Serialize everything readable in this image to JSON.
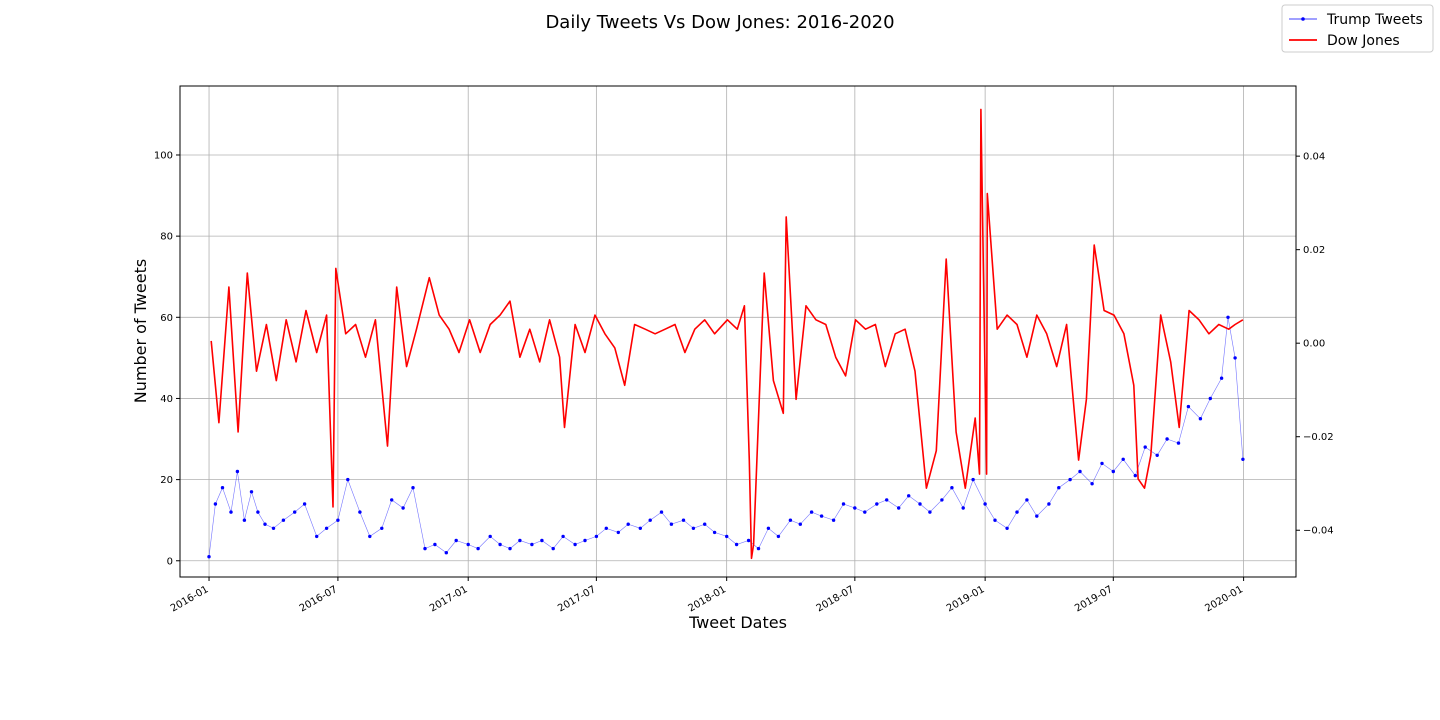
{
  "chart_data": {
    "type": "line",
    "title": "Daily Tweets Vs Dow Jones: 2016-2020",
    "xlabel": "Tweet Dates",
    "ylabel": "Number of Tweets",
    "y2label": "",
    "xlim": [
      "2015-11-21",
      "2020-03-15"
    ],
    "ylim": [
      -4,
      117
    ],
    "y2lim": [
      -0.05,
      0.055
    ],
    "grid": true,
    "legend_position": "top-right",
    "x_ticks": [
      "2016-01",
      "2016-07",
      "2017-01",
      "2017-07",
      "2018-01",
      "2018-07",
      "2019-01",
      "2019-07",
      "2020-01"
    ],
    "y_ticks": [
      0,
      20,
      40,
      60,
      80,
      100
    ],
    "y2_ticks": [
      0.04,
      0.02,
      0.0,
      -0.02,
      -0.04
    ],
    "y2_tick_labels": [
      "0.04",
      "0.02",
      "0.00",
      "−0.02",
      "−0.04"
    ],
    "colors": {
      "tweets": "#0000ff",
      "dow": "#ff0000",
      "grid": "#b0b0b0"
    },
    "series": [
      {
        "name": "Trump Tweets",
        "axis": "left",
        "style": "line-with-markers",
        "x": [
          "2016-01-01",
          "2016-01-10",
          "2016-01-20",
          "2016-02-01",
          "2016-02-10",
          "2016-02-20",
          "2016-03-01",
          "2016-03-10",
          "2016-03-20",
          "2016-04-01",
          "2016-04-15",
          "2016-05-01",
          "2016-05-15",
          "2016-06-01",
          "2016-06-15",
          "2016-07-01",
          "2016-07-15",
          "2016-08-01",
          "2016-08-15",
          "2016-09-01",
          "2016-09-15",
          "2016-10-01",
          "2016-10-15",
          "2016-11-01",
          "2016-11-15",
          "2016-12-01",
          "2016-12-15",
          "2017-01-01",
          "2017-01-15",
          "2017-02-01",
          "2017-02-15",
          "2017-03-01",
          "2017-03-15",
          "2017-04-01",
          "2017-04-15",
          "2017-05-01",
          "2017-05-15",
          "2017-06-01",
          "2017-06-15",
          "2017-07-01",
          "2017-07-15",
          "2017-08-01",
          "2017-08-15",
          "2017-09-01",
          "2017-09-15",
          "2017-10-01",
          "2017-10-15",
          "2017-11-01",
          "2017-11-15",
          "2017-12-01",
          "2017-12-15",
          "2018-01-01",
          "2018-01-15",
          "2018-02-01",
          "2018-02-15",
          "2018-03-01",
          "2018-03-15",
          "2018-04-01",
          "2018-04-15",
          "2018-05-01",
          "2018-05-15",
          "2018-06-01",
          "2018-06-15",
          "2018-07-01",
          "2018-07-15",
          "2018-08-01",
          "2018-08-15",
          "2018-09-01",
          "2018-09-15",
          "2018-10-01",
          "2018-10-15",
          "2018-11-01",
          "2018-11-15",
          "2018-12-01",
          "2018-12-15",
          "2019-01-01",
          "2019-01-15",
          "2019-02-01",
          "2019-02-15",
          "2019-03-01",
          "2019-03-15",
          "2019-04-01",
          "2019-04-15",
          "2019-05-01",
          "2019-05-15",
          "2019-06-01",
          "2019-06-15",
          "2019-07-01",
          "2019-07-15",
          "2019-08-01",
          "2019-08-15",
          "2019-09-01",
          "2019-09-15",
          "2019-10-01",
          "2019-10-15",
          "2019-11-01",
          "2019-11-15",
          "2019-12-01",
          "2019-12-10",
          "2019-12-20",
          "2019-12-31"
        ],
        "values": [
          1,
          14,
          18,
          12,
          22,
          10,
          17,
          12,
          9,
          8,
          10,
          12,
          14,
          6,
          8,
          10,
          20,
          12,
          6,
          8,
          15,
          13,
          18,
          3,
          4,
          2,
          5,
          4,
          3,
          6,
          4,
          3,
          5,
          4,
          5,
          3,
          6,
          4,
          5,
          6,
          8,
          7,
          9,
          8,
          10,
          12,
          9,
          10,
          8,
          9,
          7,
          6,
          4,
          5,
          3,
          8,
          6,
          10,
          9,
          12,
          11,
          10,
          14,
          13,
          12,
          14,
          15,
          13,
          16,
          14,
          12,
          15,
          18,
          13,
          20,
          14,
          10,
          8,
          12,
          15,
          11,
          14,
          18,
          20,
          22,
          19,
          24,
          22,
          25,
          21,
          28,
          26,
          30,
          29,
          38,
          35,
          40,
          45,
          60,
          50,
          25
        ]
      },
      {
        "name": "Dow Jones",
        "axis": "right",
        "style": "line",
        "x": [
          "2016-01-04",
          "2016-01-15",
          "2016-01-29",
          "2016-02-11",
          "2016-02-24",
          "2016-03-08",
          "2016-03-22",
          "2016-04-05",
          "2016-04-19",
          "2016-05-03",
          "2016-05-17",
          "2016-06-01",
          "2016-06-15",
          "2016-06-24",
          "2016-06-28",
          "2016-07-12",
          "2016-07-26",
          "2016-08-09",
          "2016-08-23",
          "2016-09-09",
          "2016-09-22",
          "2016-10-06",
          "2016-10-20",
          "2016-11-07",
          "2016-11-21",
          "2016-12-05",
          "2016-12-19",
          "2017-01-03",
          "2017-01-18",
          "2017-02-01",
          "2017-02-15",
          "2017-03-01",
          "2017-03-15",
          "2017-03-29",
          "2017-04-12",
          "2017-04-26",
          "2017-05-10",
          "2017-05-17",
          "2017-06-01",
          "2017-06-15",
          "2017-06-29",
          "2017-07-13",
          "2017-07-27",
          "2017-08-10",
          "2017-08-24",
          "2017-09-08",
          "2017-09-22",
          "2017-10-06",
          "2017-10-20",
          "2017-11-03",
          "2017-11-17",
          "2017-12-01",
          "2017-12-15",
          "2018-01-02",
          "2018-01-16",
          "2018-01-26",
          "2018-02-02",
          "2018-02-05",
          "2018-02-08",
          "2018-02-23",
          "2018-03-08",
          "2018-03-22",
          "2018-03-26",
          "2018-04-09",
          "2018-04-23",
          "2018-05-07",
          "2018-05-21",
          "2018-06-04",
          "2018-06-18",
          "2018-07-02",
          "2018-07-16",
          "2018-07-30",
          "2018-08-13",
          "2018-08-27",
          "2018-09-10",
          "2018-09-24",
          "2018-10-10",
          "2018-10-24",
          "2018-11-07",
          "2018-11-21",
          "2018-12-04",
          "2018-12-18",
          "2018-12-24",
          "2018-12-26",
          "2019-01-03",
          "2019-01-04",
          "2019-01-18",
          "2019-02-01",
          "2019-02-15",
          "2019-03-01",
          "2019-03-15",
          "2019-03-29",
          "2019-04-12",
          "2019-04-26",
          "2019-05-13",
          "2019-05-24",
          "2019-06-04",
          "2019-06-18",
          "2019-07-02",
          "2019-07-16",
          "2019-07-30",
          "2019-08-05",
          "2019-08-14",
          "2019-08-23",
          "2019-09-06",
          "2019-09-20",
          "2019-10-02",
          "2019-10-16",
          "2019-10-30",
          "2019-11-13",
          "2019-11-27",
          "2019-12-11",
          "2019-12-20",
          "2019-12-31"
        ],
        "values": [
          0.0005,
          -0.017,
          0.012,
          -0.019,
          0.015,
          -0.006,
          0.004,
          -0.008,
          0.005,
          -0.004,
          0.007,
          -0.002,
          0.006,
          -0.035,
          0.016,
          0.002,
          0.004,
          -0.003,
          0.005,
          -0.022,
          0.012,
          -0.005,
          0.003,
          0.014,
          0.006,
          0.003,
          -0.002,
          0.005,
          -0.002,
          0.004,
          0.006,
          0.009,
          -0.003,
          0.003,
          -0.004,
          0.005,
          -0.003,
          -0.018,
          0.004,
          -0.002,
          0.006,
          0.002,
          -0.001,
          -0.009,
          0.004,
          0.003,
          0.002,
          0.003,
          0.004,
          -0.002,
          0.003,
          0.005,
          0.002,
          0.005,
          0.003,
          0.008,
          -0.025,
          -0.046,
          -0.043,
          0.015,
          -0.008,
          -0.015,
          0.027,
          -0.012,
          0.008,
          0.005,
          0.004,
          -0.003,
          -0.007,
          0.005,
          0.003,
          0.004,
          -0.005,
          0.002,
          0.003,
          -0.006,
          -0.031,
          -0.023,
          0.018,
          -0.019,
          -0.031,
          -0.016,
          -0.028,
          0.05,
          -0.028,
          0.032,
          0.003,
          0.006,
          0.004,
          -0.003,
          0.006,
          0.002,
          -0.005,
          0.004,
          -0.025,
          -0.012,
          0.021,
          0.007,
          0.006,
          0.002,
          -0.009,
          -0.029,
          -0.031,
          -0.024,
          0.006,
          -0.004,
          -0.018,
          0.007,
          0.005,
          0.002,
          0.004,
          0.003,
          0.004,
          0.005
        ]
      }
    ]
  }
}
